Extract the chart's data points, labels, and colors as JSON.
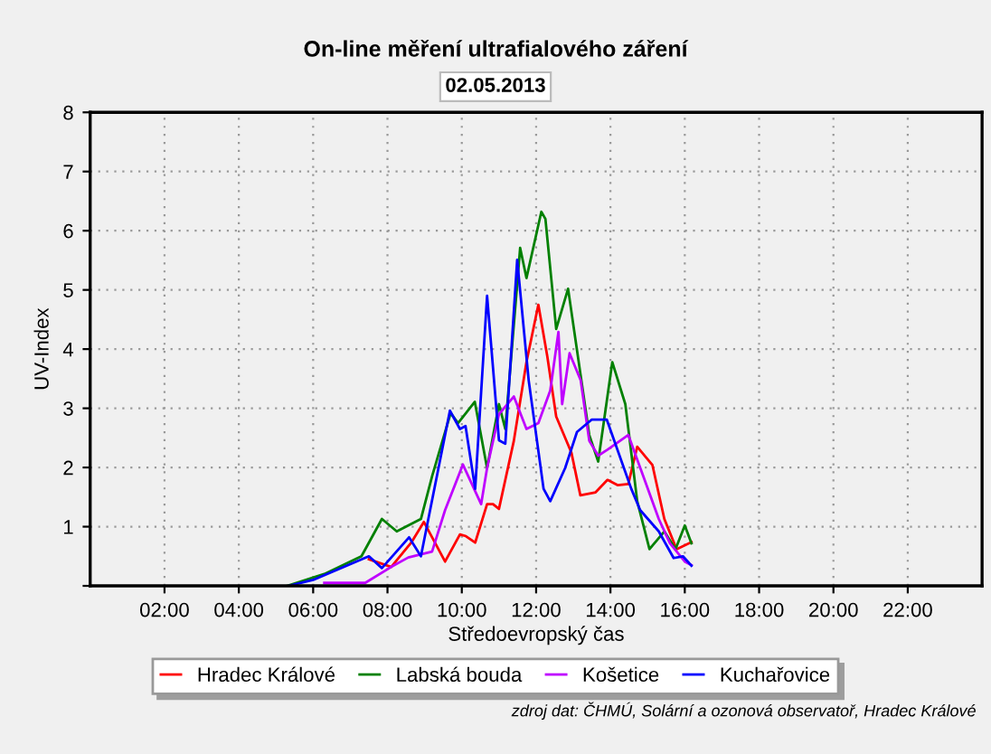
{
  "chart_data": {
    "type": "line",
    "title": "On-line měření ultrafialového záření",
    "subtitle": "02.05.2013",
    "xlabel": "Středoevropský čas",
    "ylabel": "UV-Index",
    "annotations": [
      "zdroj dat: ČHMÚ, Solární a ozonová observatoř, Hradec Králové"
    ],
    "xlim": [
      0,
      24
    ],
    "ylim": [
      0,
      8
    ],
    "xticks": [
      {
        "value": 2,
        "label": "02:00"
      },
      {
        "value": 4,
        "label": "04:00"
      },
      {
        "value": 6,
        "label": "06:00"
      },
      {
        "value": 8,
        "label": "08:00"
      },
      {
        "value": 10,
        "label": "10:00"
      },
      {
        "value": 12,
        "label": "12:00"
      },
      {
        "value": 14,
        "label": "14:00"
      },
      {
        "value": 16,
        "label": "16:00"
      },
      {
        "value": 18,
        "label": "18:00"
      },
      {
        "value": 20,
        "label": "20:00"
      },
      {
        "value": 22,
        "label": "22:00"
      }
    ],
    "yticks": [
      {
        "value": 0,
        "label": null
      },
      1,
      2,
      3,
      4,
      5,
      6,
      7,
      8
    ],
    "grid": true,
    "legend": "bottom",
    "marker": "none",
    "line_style": "solid",
    "series": [
      {
        "name": "Hradec Králové",
        "color": "#ff0000",
        "x": [
          7.5,
          8.1,
          8.64,
          8.98,
          9.55,
          9.95,
          10.11,
          10.36,
          10.68,
          10.84,
          11.0,
          11.4,
          11.74,
          12.06,
          12.3,
          12.54,
          12.95,
          13.19,
          13.6,
          13.92,
          14.2,
          14.48,
          14.72,
          15.13,
          15.45,
          15.78,
          16.18
        ],
        "values": [
          0.45,
          0.32,
          0.73,
          1.08,
          0.41,
          0.87,
          0.84,
          0.73,
          1.38,
          1.38,
          1.3,
          2.45,
          3.78,
          4.75,
          3.88,
          2.86,
          2.25,
          1.53,
          1.58,
          1.79,
          1.7,
          1.72,
          2.35,
          2.04,
          1.13,
          0.62,
          0.74
        ]
      },
      {
        "name": "Labská bouda",
        "color": "#008000",
        "x": [
          5.3,
          6.3,
          7.3,
          7.85,
          8.25,
          8.9,
          9.2,
          9.7,
          9.9,
          10.35,
          10.68,
          11.0,
          11.17,
          11.57,
          11.74,
          12.14,
          12.25,
          12.54,
          12.86,
          13.43,
          13.67,
          14.05,
          14.4,
          14.72,
          15.05,
          15.45,
          15.75,
          16.0,
          16.18
        ],
        "values": [
          0,
          0.2,
          0.5,
          1.13,
          0.92,
          1.13,
          1.85,
          2.92,
          2.75,
          3.11,
          1.99,
          3.07,
          2.65,
          5.71,
          5.2,
          6.32,
          6.2,
          4.34,
          5.02,
          2.55,
          2.1,
          3.78,
          3.07,
          1.43,
          0.62,
          0.92,
          0.62,
          1.02,
          0.72
        ]
      },
      {
        "name": "Košetice",
        "color": "#bf00ff",
        "x": [
          6.3,
          7.4,
          8.1,
          8.56,
          9.2,
          9.55,
          10.03,
          10.52,
          10.68,
          11.0,
          11.4,
          11.74,
          12.06,
          12.38,
          12.6,
          12.7,
          12.9,
          13.2,
          13.43,
          13.67,
          13.92,
          14.48,
          14.89,
          15.3,
          15.6,
          16.0,
          16.18
        ],
        "values": [
          0.05,
          0.05,
          0.32,
          0.48,
          0.58,
          1.28,
          2.05,
          1.38,
          1.99,
          2.9,
          3.2,
          2.65,
          2.75,
          3.3,
          4.29,
          3.07,
          3.93,
          3.47,
          2.45,
          2.2,
          2.3,
          2.55,
          1.84,
          1.13,
          0.72,
          0.41,
          0.35
        ]
      },
      {
        "name": "Kuchařovice",
        "color": "#0000ff",
        "x": [
          5.34,
          6.0,
          7.5,
          7.85,
          8.58,
          8.9,
          9.68,
          9.95,
          10.1,
          10.36,
          10.68,
          11.0,
          11.17,
          11.49,
          11.8,
          12.2,
          12.38,
          12.78,
          13.1,
          13.5,
          13.9,
          14.56,
          14.8,
          15.3,
          15.7,
          15.95,
          16.18
        ],
        "values": [
          0,
          0.1,
          0.5,
          0.3,
          0.82,
          0.5,
          2.96,
          2.65,
          2.7,
          1.64,
          4.9,
          2.46,
          2.4,
          5.51,
          3.47,
          1.64,
          1.43,
          1.99,
          2.6,
          2.81,
          2.81,
          1.64,
          1.28,
          0.92,
          0.47,
          0.5,
          0.34
        ]
      }
    ]
  }
}
